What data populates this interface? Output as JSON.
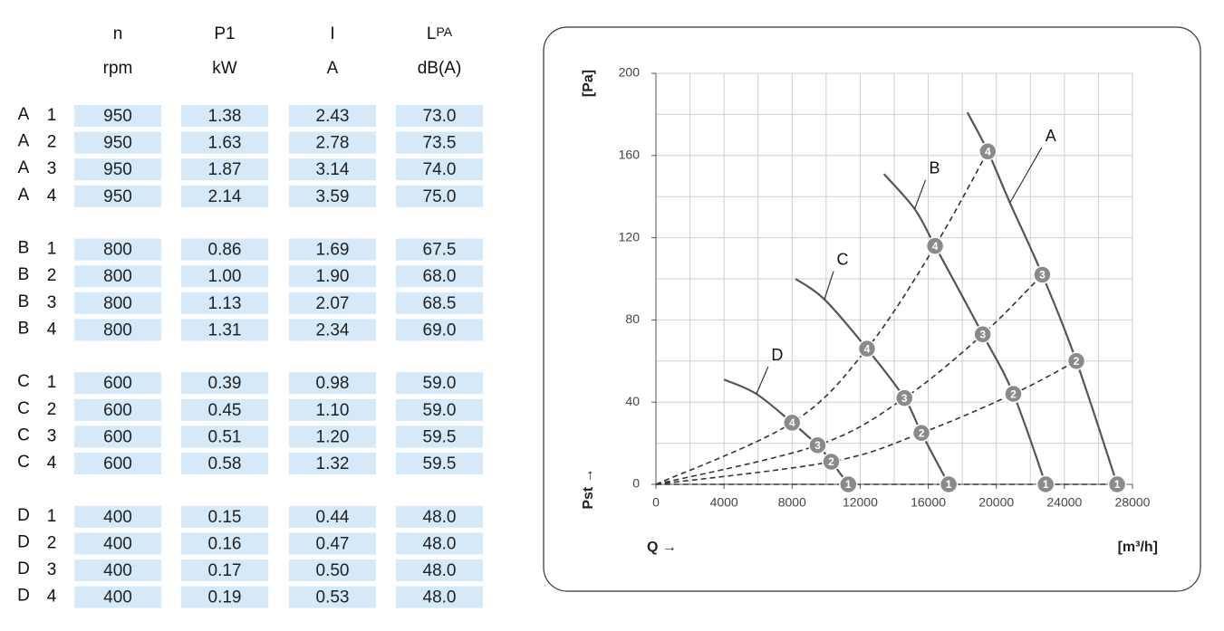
{
  "table": {
    "headers": [
      "n",
      "P1",
      "I",
      {
        "main": "L",
        "small": "PA"
      }
    ],
    "units": [
      "rpm",
      "kW",
      "A",
      "dB(A)"
    ],
    "groups": [
      {
        "fan": "A",
        "rows": [
          {
            "step": "1",
            "cells": [
              "950",
              "1.38",
              "2.43",
              "73.0"
            ]
          },
          {
            "step": "2",
            "cells": [
              "950",
              "1.63",
              "2.78",
              "73.5"
            ]
          },
          {
            "step": "3",
            "cells": [
              "950",
              "1.87",
              "3.14",
              "74.0"
            ]
          },
          {
            "step": "4",
            "cells": [
              "950",
              "2.14",
              "3.59",
              "75.0"
            ]
          }
        ]
      },
      {
        "fan": "B",
        "rows": [
          {
            "step": "1",
            "cells": [
              "800",
              "0.86",
              "1.69",
              "67.5"
            ]
          },
          {
            "step": "2",
            "cells": [
              "800",
              "1.00",
              "1.90",
              "68.0"
            ]
          },
          {
            "step": "3",
            "cells": [
              "800",
              "1.13",
              "2.07",
              "68.5"
            ]
          },
          {
            "step": "4",
            "cells": [
              "800",
              "1.31",
              "2.34",
              "69.0"
            ]
          }
        ]
      },
      {
        "fan": "C",
        "rows": [
          {
            "step": "1",
            "cells": [
              "600",
              "0.39",
              "0.98",
              "59.0"
            ]
          },
          {
            "step": "2",
            "cells": [
              "600",
              "0.45",
              "1.10",
              "59.0"
            ]
          },
          {
            "step": "3",
            "cells": [
              "600",
              "0.51",
              "1.20",
              "59.5"
            ]
          },
          {
            "step": "4",
            "cells": [
              "600",
              "0.58",
              "1.32",
              "59.5"
            ]
          }
        ]
      },
      {
        "fan": "D",
        "rows": [
          {
            "step": "1",
            "cells": [
              "400",
              "0.15",
              "0.44",
              "48.0"
            ]
          },
          {
            "step": "2",
            "cells": [
              "400",
              "0.16",
              "0.47",
              "48.0"
            ]
          },
          {
            "step": "3",
            "cells": [
              "400",
              "0.17",
              "0.50",
              "48.0"
            ]
          },
          {
            "step": "4",
            "cells": [
              "400",
              "0.19",
              "0.53",
              "48.0"
            ]
          }
        ]
      }
    ]
  },
  "chart_data": {
    "type": "line",
    "y_unit": "[Pa]",
    "y_label": "Pst →",
    "x_label": "Q →",
    "x_unit": "[m³/h]",
    "xlim": [
      0,
      28000
    ],
    "ylim": [
      0,
      200
    ],
    "xticks": [
      0,
      4000,
      8000,
      12000,
      16000,
      20000,
      24000,
      28000
    ],
    "yticks": [
      0,
      40,
      80,
      120,
      160,
      200
    ],
    "xminorticks": [
      2000,
      6000,
      10000,
      14000,
      18000,
      22000,
      26000
    ],
    "yminorticks": [
      20,
      60,
      100,
      140,
      180
    ],
    "grid": true,
    "series": [
      {
        "name": "A",
        "color": "#555555",
        "x": [
          18300,
          19500,
          20800,
          22700,
          24700,
          27100
        ],
        "values": [
          181,
          162,
          137,
          102,
          60,
          0
        ]
      },
      {
        "name": "B",
        "color": "#555555",
        "x": [
          13400,
          15200,
          16400,
          19200,
          21000,
          22900
        ],
        "values": [
          151,
          134,
          116,
          73,
          44,
          0
        ]
      },
      {
        "name": "C",
        "color": "#555555",
        "x": [
          8200,
          9900,
          12400,
          14600,
          15600,
          17200
        ],
        "values": [
          100,
          90,
          66,
          42,
          25,
          0
        ]
      },
      {
        "name": "D",
        "color": "#555555",
        "x": [
          4000,
          5900,
          8000,
          9500,
          10300,
          11300
        ],
        "values": [
          51,
          44,
          30,
          19,
          11,
          0
        ]
      }
    ],
    "system_curves": [
      {
        "name": "1",
        "color": "#333333",
        "x": [
          0,
          11300,
          17200,
          22900,
          27100
        ],
        "values": [
          0,
          0,
          0,
          0,
          0
        ]
      },
      {
        "name": "2",
        "color": "#333333",
        "x": [
          0,
          10300,
          15600,
          21000,
          24700
        ],
        "values": [
          0,
          11,
          25,
          44,
          60
        ]
      },
      {
        "name": "3",
        "color": "#333333",
        "x": [
          0,
          9500,
          14600,
          19200,
          22700
        ],
        "values": [
          0,
          19,
          42,
          73,
          102
        ]
      },
      {
        "name": "4",
        "color": "#333333",
        "x": [
          0,
          8000,
          12400,
          16400,
          19500
        ],
        "values": [
          0,
          30,
          66,
          116,
          162
        ]
      }
    ],
    "marker_color": "#8a8a8a"
  }
}
